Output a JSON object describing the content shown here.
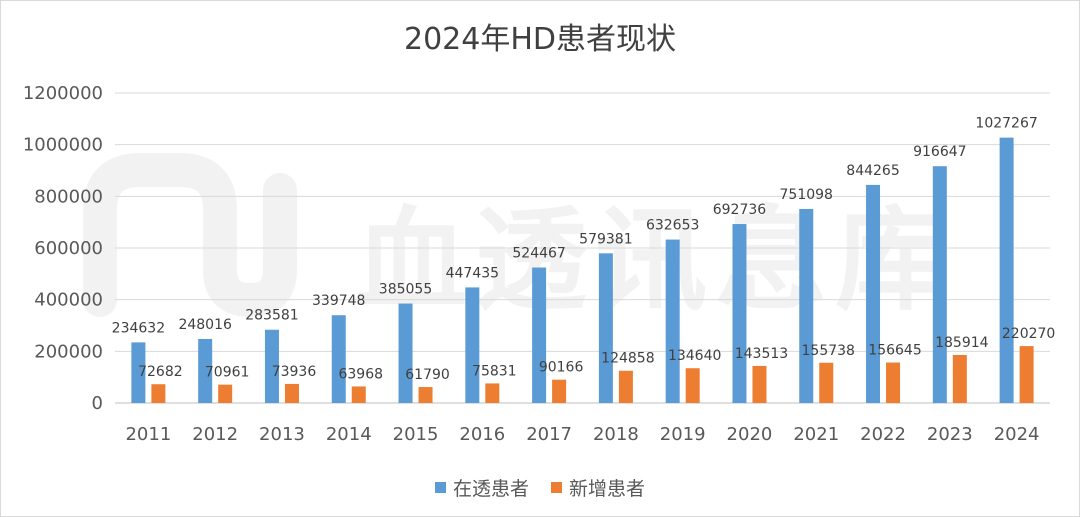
{
  "chart_data": {
    "type": "bar",
    "title": "2024年HD患者现状",
    "categories": [
      "2011",
      "2012",
      "2013",
      "2014",
      "2015",
      "2016",
      "2017",
      "2018",
      "2019",
      "2020",
      "2021",
      "2022",
      "2023",
      "2024"
    ],
    "series": [
      {
        "name": "在透患者",
        "color": "#5b9bd5",
        "values": [
          234632,
          248016,
          283581,
          339748,
          385055,
          447435,
          524467,
          579381,
          632653,
          692736,
          751098,
          844265,
          916647,
          1027267
        ]
      },
      {
        "name": "新增患者",
        "color": "#ed7d31",
        "values": [
          72682,
          70961,
          73936,
          63968,
          61790,
          75831,
          90166,
          124858,
          134640,
          143513,
          155738,
          156645,
          185914,
          220270
        ]
      }
    ],
    "ylim": [
      0,
      1200000
    ],
    "yticks": [
      0,
      200000,
      400000,
      600000,
      800000,
      1000000,
      1200000
    ],
    "grid": true,
    "legend_position": "bottom"
  },
  "watermark": {
    "text": "血透讯息库"
  }
}
